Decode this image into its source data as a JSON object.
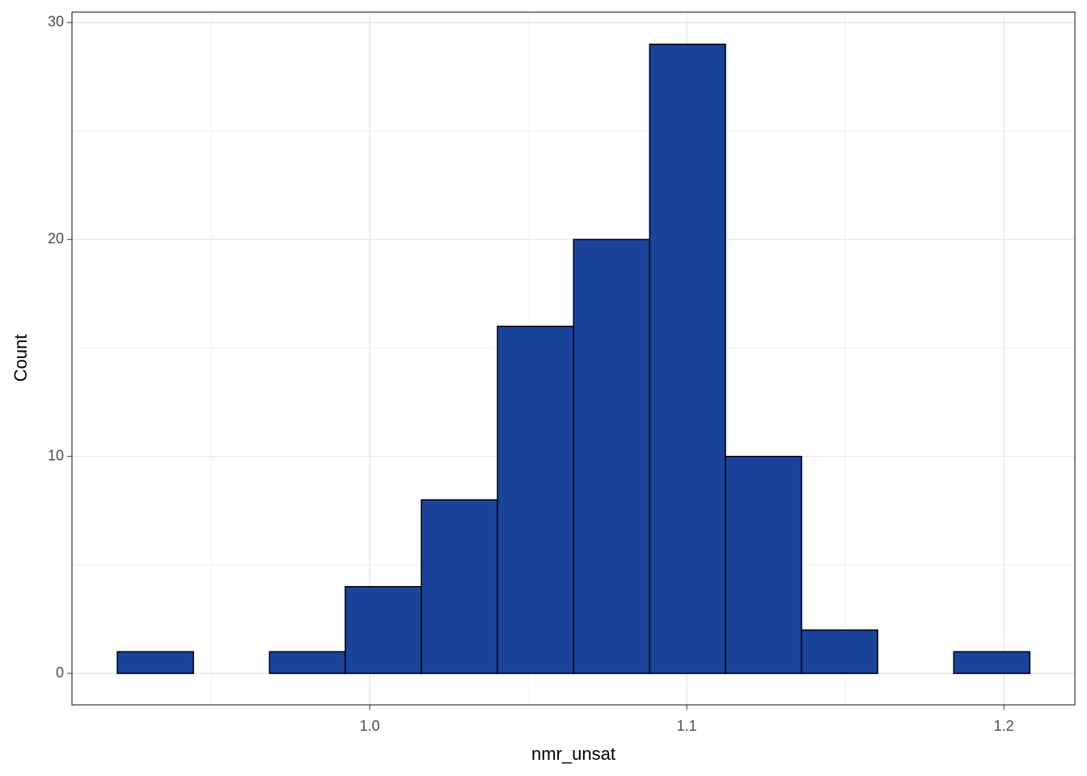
{
  "chart_data": {
    "type": "histogram",
    "x_label": "nmr_unsat",
    "y_label": "Count",
    "bins": [
      0.9204,
      0.9444,
      0.9684,
      0.9923,
      1.0163,
      1.0403,
      1.0643,
      1.0883,
      1.1122,
      1.1362,
      1.1602,
      1.1842,
      1.2082
    ],
    "values": [
      1,
      0,
      1,
      4,
      8,
      16,
      20,
      29,
      10,
      2,
      0,
      1
    ],
    "color": "#1a439a",
    "xlim": [
      0.9061,
      1.2224
    ],
    "ylim": [
      -1.45,
      30.48
    ],
    "xticks": [
      {
        "value": 1,
        "label": "1.0"
      },
      1.1,
      1.2
    ],
    "yticks": [
      0,
      10,
      20,
      30
    ],
    "grid": true
  }
}
